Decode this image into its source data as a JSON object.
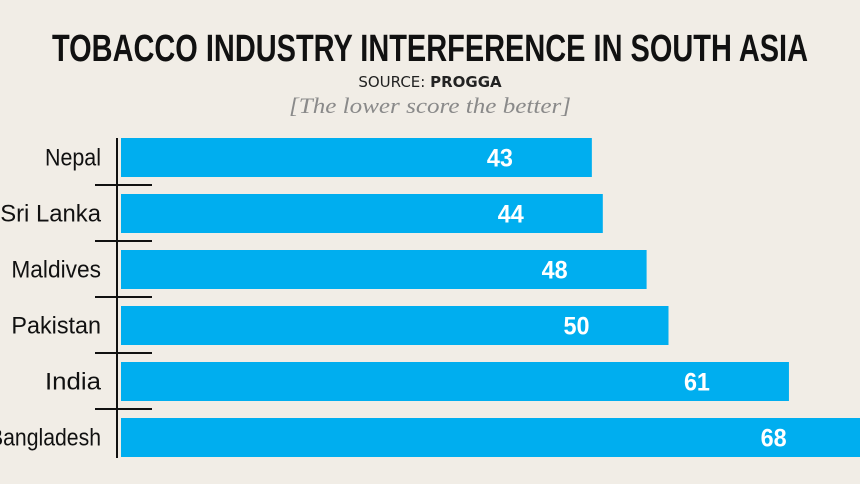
{
  "chart_data": {
    "type": "bar",
    "orientation": "horizontal",
    "title": "TOBACCO INDUSTRY INTERFERENCE IN SOUTH ASIA",
    "source_label": "SOURCE:",
    "source_name": "PROGGA",
    "subtitle": "[The lower score the better]",
    "categories": [
      "Nepal",
      "Sri Lanka",
      "Maldives",
      "Pakistan",
      "India",
      "Bangladesh"
    ],
    "values": [
      43,
      44,
      48,
      50,
      61,
      68
    ],
    "xlim": [
      0,
      68
    ],
    "grid": false,
    "bar_color": "#00aeef",
    "background_color": "#f1ede6"
  }
}
